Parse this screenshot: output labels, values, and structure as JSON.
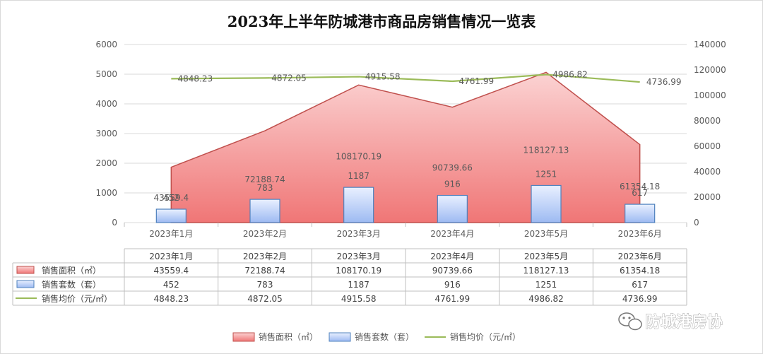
{
  "chart_data": {
    "type": "combo",
    "title": "2023年上半年防城港市商品房销售情况一览表",
    "categories": [
      "2023年1月",
      "2023年2月",
      "2023年3月",
      "2023年4月",
      "2023年5月",
      "2023年6月"
    ],
    "series": [
      {
        "name": "销售面积（㎡）",
        "type": "area",
        "axis": "right",
        "values": [
          43559.4,
          72188.74,
          108170.19,
          90739.66,
          118127.13,
          61354.18
        ],
        "labels": [
          "43559.4",
          "72188.74",
          "108170.19",
          "90739.66",
          "118127.13",
          "61354.18"
        ],
        "color": "#f4a3a3"
      },
      {
        "name": "销售套数（套）",
        "type": "bar",
        "axis": "left",
        "values": [
          452,
          783,
          1187,
          916,
          1251,
          617
        ],
        "labels": [
          "452",
          "783",
          "1187",
          "916",
          "1251",
          "617"
        ],
        "color": "#a9c4f5"
      },
      {
        "name": "销售均价（元/㎡）",
        "type": "line",
        "axis": "left",
        "values": [
          4848.23,
          4872.05,
          4915.58,
          4761.99,
          4986.82,
          4736.99
        ],
        "labels": [
          "4848.23",
          "4872.05",
          "4915.58",
          "4761.99",
          "4986.82",
          "4736.99"
        ],
        "color": "#9bbb59"
      }
    ],
    "y_left": {
      "range": [
        0,
        6000
      ],
      "ticks": [
        "0",
        "1000",
        "2000",
        "3000",
        "4000",
        "5000",
        "6000"
      ]
    },
    "y_right": {
      "range": [
        0,
        140000
      ],
      "ticks": [
        "0",
        "20000",
        "40000",
        "60000",
        "80000",
        "100000",
        "120000",
        "140000"
      ]
    },
    "grid": true,
    "legend_position": "bottom",
    "data_table": true
  },
  "watermark": {
    "text": "防城港房协",
    "icon": "wechat-icon"
  }
}
